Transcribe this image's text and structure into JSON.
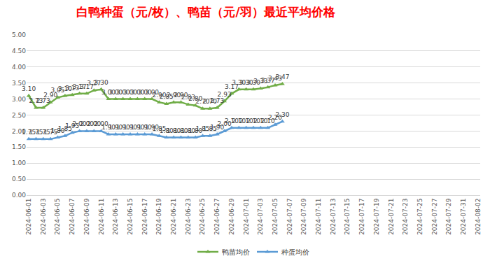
{
  "chart_data": {
    "type": "line",
    "title": "白鸭种蛋（元/枚）、鸭苗（元/羽）最近平均价格",
    "categories": [
      "2024-06-01",
      null,
      "2024-06-03",
      null,
      "2024-06-05",
      null,
      "2024-06-07",
      null,
      "2024-06-09",
      null,
      "2024-06-11",
      null,
      "2024-06-13",
      null,
      "2024-06-15",
      null,
      "2024-06-17",
      null,
      "2024-06-19",
      null,
      "2024-06-21",
      null,
      "2024-06-23",
      null,
      "2024-06-25",
      null,
      "2024-06-27",
      null,
      "2024-06-29",
      null,
      "2024-07-01",
      null,
      "2024-07-03",
      null,
      "2024-07-05",
      null,
      "2024-07-07",
      null,
      "2024-07-09",
      null,
      "2024-07-11",
      null,
      "2024-07-13",
      null,
      "2024-07-15",
      null,
      "2024-07-17",
      null,
      "2024-07-19",
      null,
      "2024-07-21",
      null,
      "2024-07-23",
      null,
      "2024-07-25",
      null,
      "2024-07-27",
      null,
      "2024-07-29",
      null,
      "2024-07-31",
      null,
      "2024-08-02"
    ],
    "series": [
      {
        "name": "鸭苗均价",
        "color": "#70ad47",
        "marker": "triangle-up",
        "line_style": "solid",
        "values": [
          3.1,
          2.73,
          2.73,
          2.9,
          3.05,
          3.1,
          3.13,
          3.17,
          3.17,
          3.27,
          3.3,
          3.0,
          3.0,
          3.0,
          3.0,
          3.0,
          3.0,
          3.0,
          2.9,
          2.85,
          2.9,
          2.9,
          2.83,
          2.8,
          2.7,
          2.7,
          2.73,
          2.93,
          3.17,
          3.3,
          3.3,
          3.3,
          3.33,
          3.37,
          3.43,
          3.47,
          null,
          null,
          null,
          null,
          null,
          null,
          null,
          null,
          null,
          null,
          null,
          null,
          null,
          null,
          null,
          null,
          null,
          null,
          null,
          null,
          null,
          null,
          null,
          null,
          null,
          null,
          null
        ],
        "value_labels": [
          "3.10",
          "2.73",
          "2.73",
          "2.90",
          "3.05",
          "3.10",
          "3.13",
          "3.17",
          "3.17",
          "3.27",
          "3.30",
          "3.00",
          "3.00",
          "3.00",
          "3.00",
          "3.00",
          "3.00",
          "3.00",
          "2.90",
          "2.85",
          "2.90",
          "2.90",
          "2.83",
          "2.80",
          "2.70",
          "2.70",
          "2.73",
          "2.93",
          "3.17",
          "3.30",
          "3.30",
          "3.30",
          "3.33",
          "3.37",
          "3.43",
          "3.47",
          null,
          null,
          null,
          null,
          null,
          null,
          null,
          null,
          null,
          null,
          null,
          null,
          null,
          null,
          null,
          null,
          null,
          null,
          null,
          null,
          null,
          null,
          null,
          null,
          null,
          null,
          null
        ]
      },
      {
        "name": "种蛋均价",
        "color": "#5b9bd5",
        "marker": "triangle-up",
        "line_style": "solid",
        "values": [
          1.75,
          1.75,
          1.75,
          1.75,
          1.8,
          1.85,
          1.95,
          2.0,
          2.0,
          2.0,
          2.0,
          1.9,
          1.9,
          1.9,
          1.9,
          1.9,
          1.9,
          1.9,
          1.85,
          1.8,
          1.8,
          1.8,
          1.8,
          1.8,
          1.85,
          1.85,
          1.9,
          2.0,
          2.1,
          2.1,
          2.1,
          2.1,
          2.1,
          2.1,
          2.2,
          2.3,
          null,
          null,
          null,
          null,
          null,
          null,
          null,
          null,
          null,
          null,
          null,
          null,
          null,
          null,
          null,
          null,
          null,
          null,
          null,
          null,
          null,
          null,
          null,
          null,
          null,
          null,
          null
        ],
        "value_labels": [
          "1.75",
          "1.75",
          "1.75",
          "1.75",
          "1.80",
          "1.85",
          "1.95",
          "2.00",
          "2.00",
          "2.00",
          "2.00",
          "1.90",
          "1.90",
          "1.90",
          "1.90",
          "1.90",
          "1.90",
          "1.90",
          "1.85",
          "1.80",
          "1.80",
          "1.80",
          "1.80",
          "1.80",
          "1.85",
          "1.85",
          "1.90",
          "2.00",
          "2.10",
          "2.10",
          "2.10",
          "2.10",
          "2.10",
          "2.10",
          "2.20",
          "2.30",
          null,
          null,
          null,
          null,
          null,
          null,
          null,
          null,
          null,
          null,
          null,
          null,
          null,
          null,
          null,
          null,
          null,
          null,
          null,
          null,
          null,
          null,
          null,
          null,
          null,
          null,
          null
        ]
      }
    ],
    "ylim": [
      0,
      5
    ],
    "yticks": [
      {
        "value": 0,
        "label": "0.00"
      },
      {
        "value": 0.5,
        "label": "0.50"
      },
      {
        "value": 1,
        "label": "1.00"
      },
      {
        "value": 1.5,
        "label": "1.50"
      },
      {
        "value": 2,
        "label": "2.00"
      },
      {
        "value": 2.5,
        "label": "2.50"
      },
      {
        "value": 3,
        "label": "3.00"
      },
      {
        "value": 3.5,
        "label": "3.50"
      },
      {
        "value": 4,
        "label": "4.00"
      },
      {
        "value": 4.5,
        "label": "4.50"
      },
      {
        "value": 5,
        "label": "5.00"
      }
    ],
    "grid": true,
    "legend": "bottom",
    "data_labels": true
  }
}
